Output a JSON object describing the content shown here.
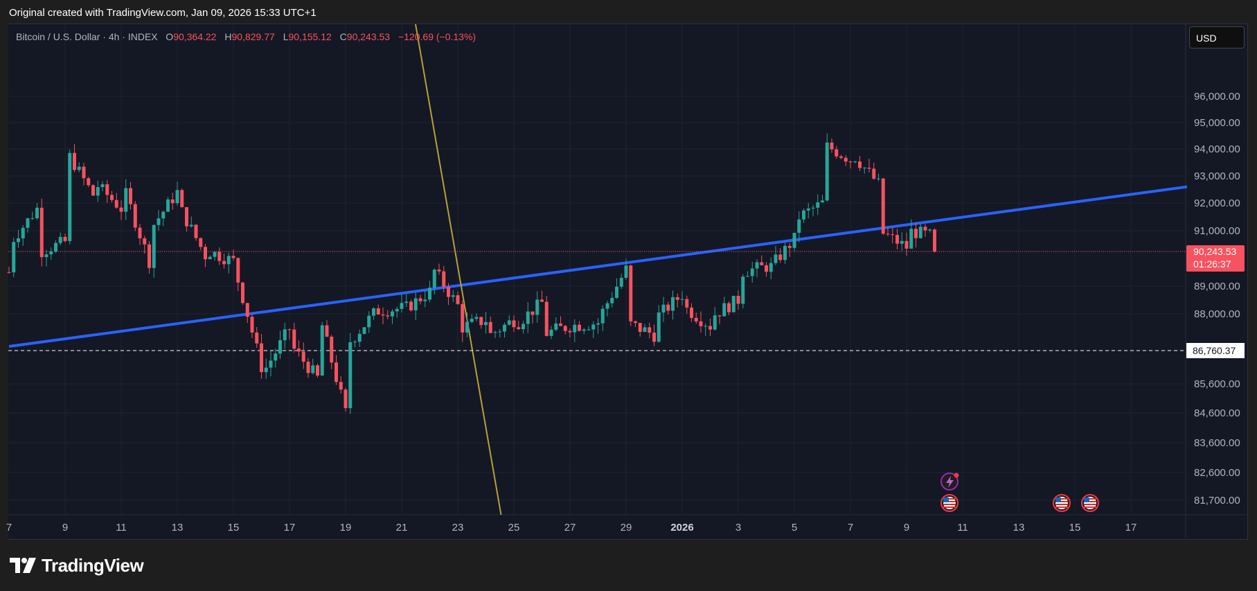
{
  "header_note": "Original created with TradingView.com, Jan 09, 2026 15:33 UTC+1",
  "legend": {
    "symbol": "Bitcoin / U.S. Dollar · 4h · INDEX",
    "open_label": "O",
    "open": "90,364.22",
    "high_label": "H",
    "high": "90,829.77",
    "low_label": "L",
    "low": "90,155.12",
    "close_label": "C",
    "close": "90,243.53",
    "change": "−120.69 (−0.13%)"
  },
  "currency": "USD",
  "brand": "TradingView",
  "colors": {
    "up": "#26a69a",
    "down": "#f7525f",
    "trendline": "#2962ff",
    "steep_line": "#b8a03a",
    "background": "#141824",
    "page": "#1e1e1e"
  },
  "chart_data": {
    "type": "candlestick",
    "title": "Bitcoin / U.S. Dollar · 4h · INDEX",
    "x_tick_labels": [
      "7",
      "9",
      "11",
      "13",
      "15",
      "17",
      "19",
      "21",
      "23",
      "25",
      "27",
      "29",
      "2026",
      "3",
      "5",
      "7",
      "9",
      "11",
      "13",
      "15",
      "17"
    ],
    "y_tick_labels": [
      "96,000.00",
      "95,000.00",
      "94,000.00",
      "93,000.00",
      "92,000.00",
      "91,000.00",
      "89,000.00",
      "88,000.00",
      "85,600.00",
      "84,600.00",
      "83,600.00",
      "82,600.00",
      "81,700.00"
    ],
    "price_label": {
      "value": "90,243.53",
      "countdown": "01:26:37"
    },
    "horizontal_line_label": "86,760.37",
    "horizontal_line_value": 86760.37,
    "last_price": 90243.53,
    "ylim": [
      81300,
      97200
    ],
    "trendline": {
      "from": [
        "Dec 7",
        86900
      ],
      "to": [
        "Jan 18",
        92600
      ]
    },
    "steep_line": {
      "from": [
        "Dec 21",
        97200
      ],
      "to": [
        "Dec 24",
        81700
      ]
    },
    "grid": true,
    "path_points": [
      [
        "Dec 7",
        89500
      ],
      [
        "Dec 7",
        90500
      ],
      [
        "Dec 8",
        91800
      ],
      [
        "Dec 8",
        90200
      ],
      [
        "Dec 9",
        90600
      ],
      [
        "Dec 9",
        94000
      ],
      [
        "Dec 10",
        92300
      ],
      [
        "Dec 10",
        92800
      ],
      [
        "Dec 11",
        91800
      ],
      [
        "Dec 11",
        92800
      ],
      [
        "Dec 12",
        89900
      ],
      [
        "Dec 12",
        91000
      ],
      [
        "Dec 13",
        92400
      ],
      [
        "Dec 13",
        92000
      ],
      [
        "Dec 14",
        90100
      ],
      [
        "Dec 14",
        90300
      ],
      [
        "Dec 15",
        89900
      ],
      [
        "Dec 15",
        88200
      ],
      [
        "Dec 15",
        89800
      ],
      [
        "Dec 16",
        86200
      ],
      [
        "Dec 16",
        85900
      ],
      [
        "Dec 17",
        87500
      ],
      [
        "Dec 17",
        87000
      ],
      [
        "Dec 18",
        85800
      ],
      [
        "Dec 18",
        87000
      ],
      [
        "Dec 18",
        88200
      ],
      [
        "Dec 19",
        84600
      ],
      [
        "Dec 19",
        86900
      ],
      [
        "Dec 20",
        88000
      ],
      [
        "Dec 20",
        88100
      ],
      [
        "Dec 21",
        88200
      ],
      [
        "Dec 21",
        88100
      ],
      [
        "Dec 22",
        88800
      ],
      [
        "Dec 22",
        89800
      ],
      [
        "Dec 23",
        88300
      ],
      [
        "Dec 23",
        87500
      ],
      [
        "Dec 24",
        87800
      ],
      [
        "Dec 24",
        87200
      ],
      [
        "Dec 25",
        87800
      ],
      [
        "Dec 25",
        87600
      ],
      [
        "Dec 26",
        88400
      ],
      [
        "Dec 26",
        87300
      ],
      [
        "Dec 27",
        87600
      ],
      [
        "Dec 27",
        87600
      ],
      [
        "Dec 28",
        87700
      ],
      [
        "Dec 28",
        87800
      ],
      [
        "Dec 29",
        89600
      ],
      [
        "Dec 29",
        87700
      ],
      [
        "Dec 30",
        87300
      ],
      [
        "Dec 30",
        87800
      ],
      [
        "Dec 31",
        88700
      ],
      [
        "Dec 31",
        88300
      ],
      [
        "Jan 1",
        87600
      ],
      [
        "Jan 1",
        87900
      ],
      [
        "Jan 2",
        88500
      ],
      [
        "Jan 2",
        89500
      ],
      [
        "Jan 3",
        89700
      ],
      [
        "Jan 3",
        89500
      ],
      [
        "Jan 4",
        90700
      ],
      [
        "Jan 4",
        91400
      ],
      [
        "Jan 5",
        92000
      ],
      [
        "Jan 5",
        93500
      ],
      [
        "Jan 5",
        94200
      ],
      [
        "Jan 6",
        93600
      ],
      [
        "Jan 6",
        93900
      ],
      [
        "Jan 7",
        92700
      ],
      [
        "Jan 7",
        91000
      ],
      [
        "Jan 8",
        90400
      ],
      [
        "Jan 8",
        91000
      ],
      [
        "Jan 9",
        90800
      ],
      [
        "Jan 9",
        90243.53
      ]
    ]
  }
}
